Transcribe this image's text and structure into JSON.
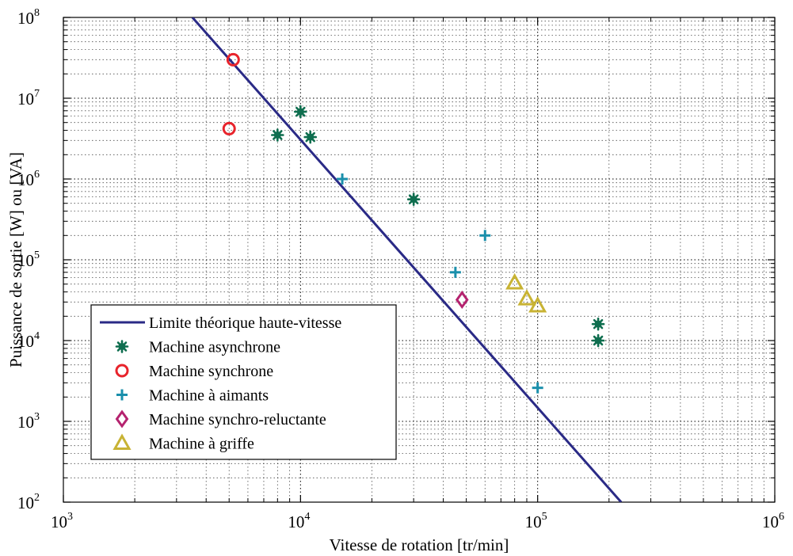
{
  "chart_data": {
    "type": "scatter",
    "title": "",
    "xlabel": "Vitesse de rotation [tr/min]",
    "ylabel": "Puissance de sortie [W] ou [VA]",
    "xscale": "log",
    "yscale": "log",
    "xlim": [
      1000,
      1000000
    ],
    "ylim": [
      100,
      100000000
    ],
    "grid": true,
    "legend": "bottom-left",
    "x_ticks": [
      {
        "base": "10",
        "exp": "3",
        "value": 1000
      },
      {
        "base": "10",
        "exp": "4",
        "value": 10000
      },
      {
        "base": "10",
        "exp": "5",
        "value": 100000
      },
      {
        "base": "10",
        "exp": "6",
        "value": 1000000
      }
    ],
    "y_ticks": [
      {
        "base": "10",
        "exp": "2",
        "value": 100
      },
      {
        "base": "10",
        "exp": "3",
        "value": 1000
      },
      {
        "base": "10",
        "exp": "4",
        "value": 10000
      },
      {
        "base": "10",
        "exp": "5",
        "value": 100000
      },
      {
        "base": "10",
        "exp": "6",
        "value": 1000000
      },
      {
        "base": "10",
        "exp": "7",
        "value": 10000000
      },
      {
        "base": "10",
        "exp": "8",
        "value": 100000000
      }
    ],
    "series": [
      {
        "name": "Limite théorique haute-vitesse",
        "kind": "line",
        "color": "#2a2a86",
        "points": [
          [
            3500,
            100000000
          ],
          [
            225000,
            100
          ]
        ]
      },
      {
        "name": "Machine asynchrone",
        "kind": "marker",
        "marker": "asterisk",
        "color": "#0f6e4f",
        "points": [
          [
            8000,
            3500000
          ],
          [
            10000,
            6800000
          ],
          [
            11000,
            3300000
          ],
          [
            30000,
            560000
          ],
          [
            180000,
            16000
          ],
          [
            180000,
            10000
          ]
        ]
      },
      {
        "name": "Machine synchrone",
        "kind": "marker",
        "marker": "circle",
        "color": "#e8242c",
        "points": [
          [
            5200,
            30000000
          ],
          [
            5000,
            4200000
          ]
        ]
      },
      {
        "name": "Machine à aimants",
        "kind": "marker",
        "marker": "plus",
        "color": "#1a8fab",
        "points": [
          [
            15000,
            1000000
          ],
          [
            60000,
            200000
          ],
          [
            45000,
            70000
          ],
          [
            100000,
            2600
          ]
        ]
      },
      {
        "name": "Machine synchro-reluctante",
        "kind": "marker",
        "marker": "diamond",
        "color": "#b5236f",
        "points": [
          [
            48000,
            32000
          ]
        ]
      },
      {
        "name": "Machine à griffe",
        "kind": "marker",
        "marker": "triangle",
        "color": "#c8b334",
        "points": [
          [
            80000,
            52000
          ],
          [
            90000,
            33000
          ],
          [
            100000,
            27000
          ]
        ]
      }
    ]
  }
}
